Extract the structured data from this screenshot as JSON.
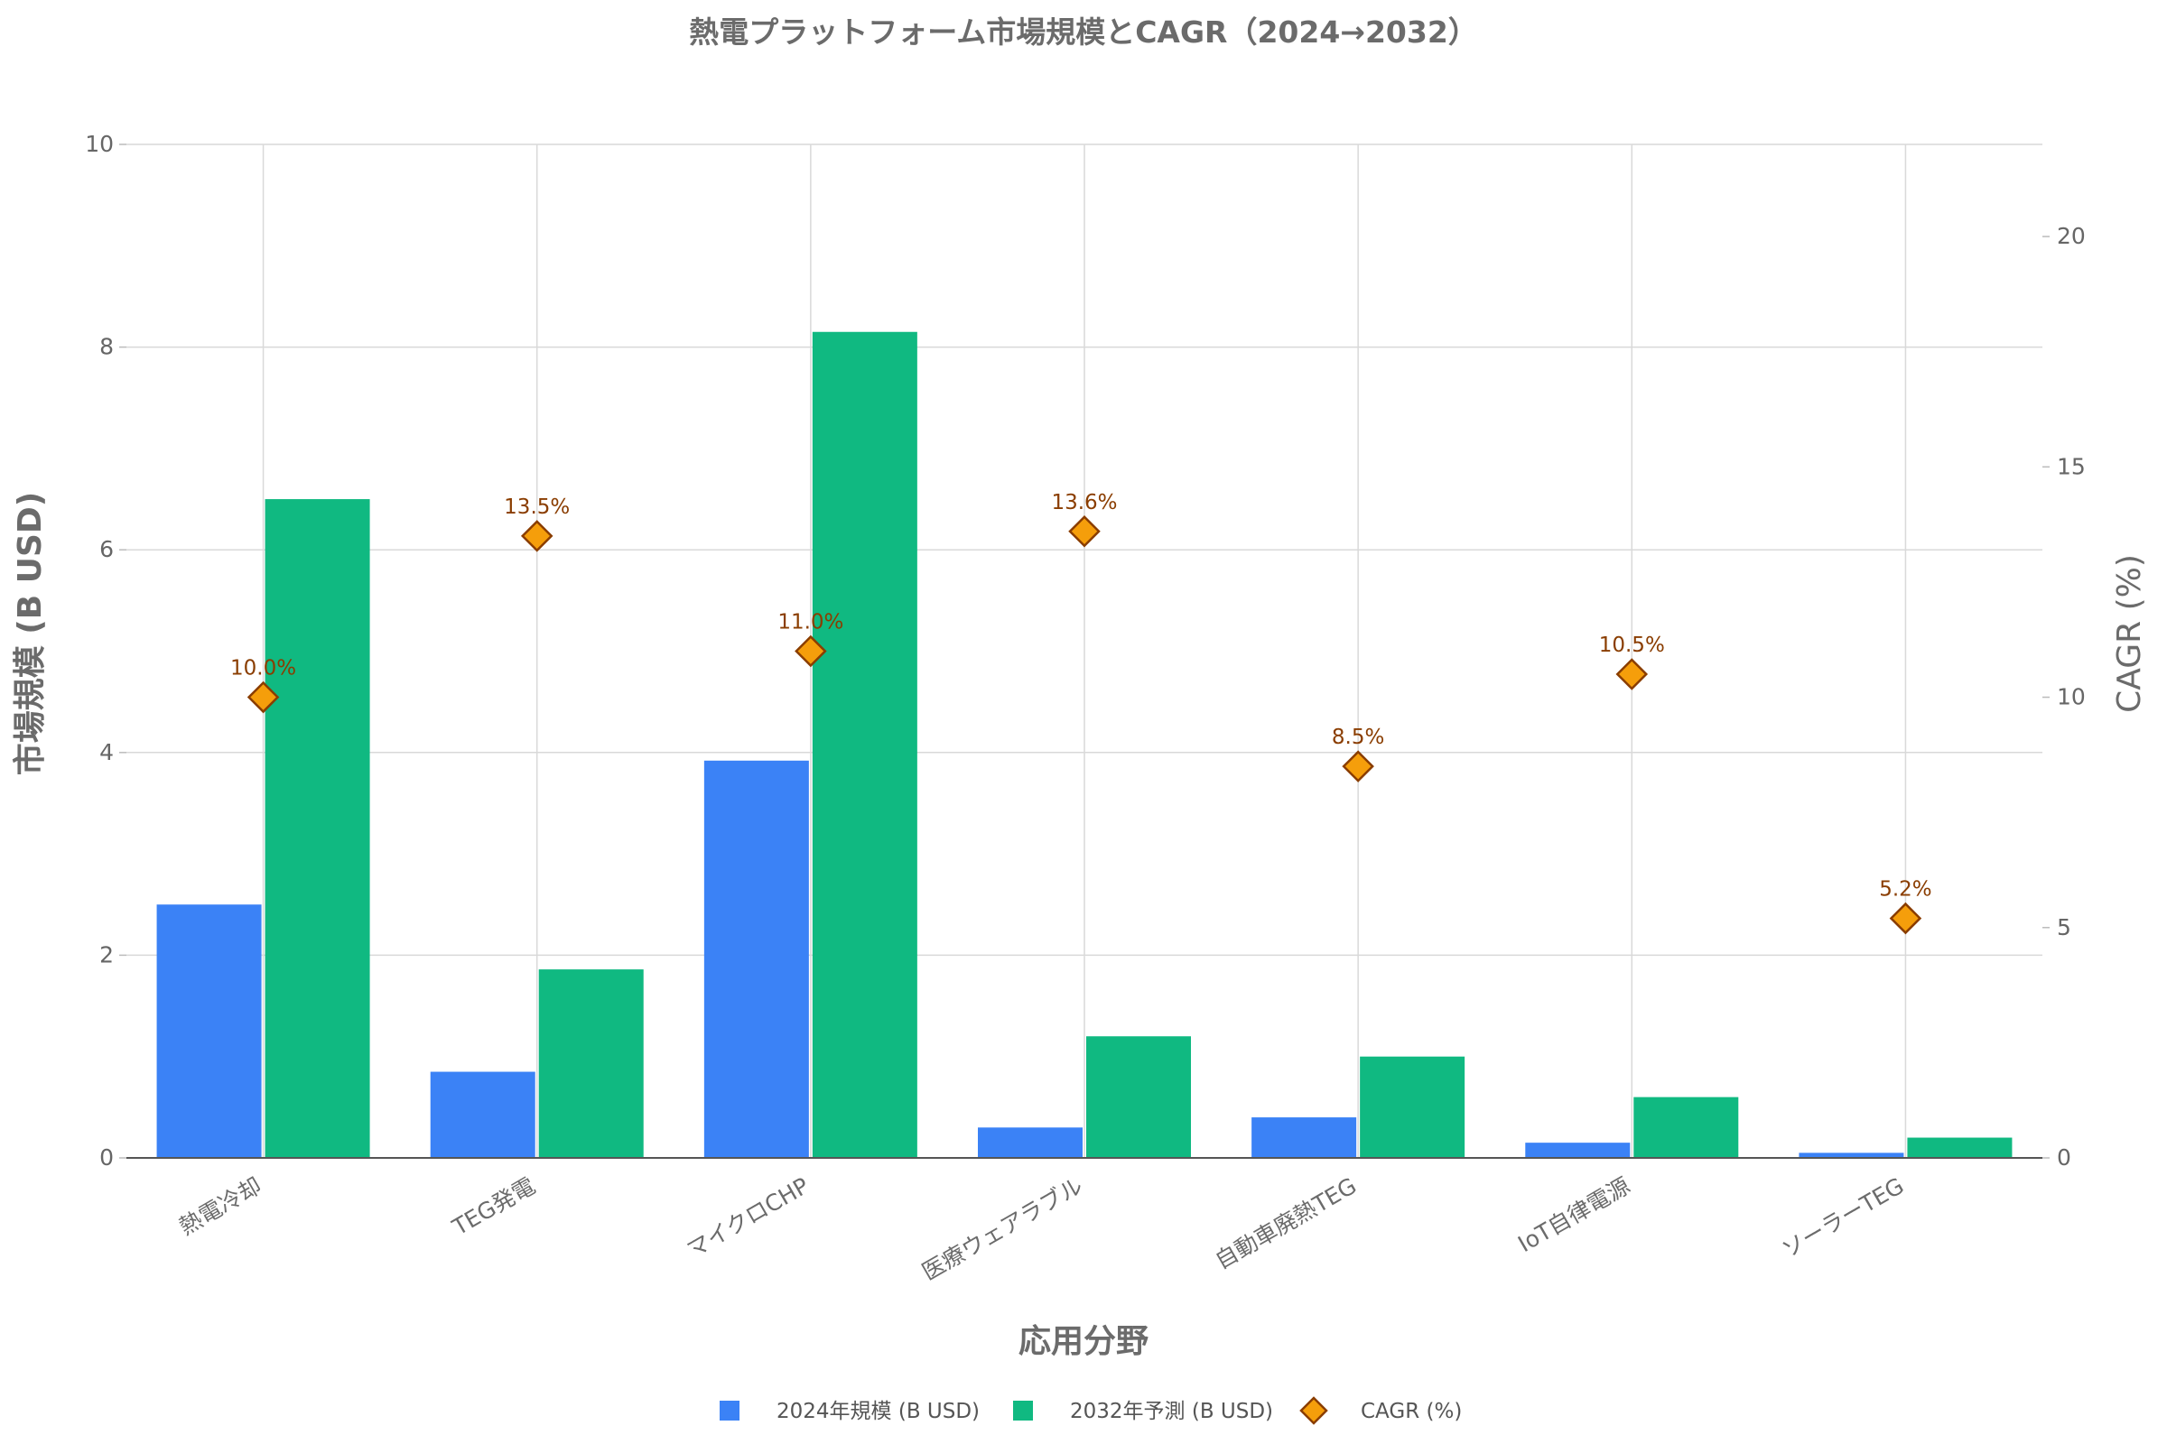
{
  "chart_data": {
    "type": "bar",
    "title": "熱電プラットフォーム市場規模とCAGR（2024→2032）",
    "xlabel": "応用分野",
    "ylabel": "市場規模 (B USD)",
    "y2label": "CAGR (%)",
    "ylim": [
      0,
      10
    ],
    "y2lim": [
      0,
      22
    ],
    "yticks": [
      0,
      2,
      4,
      6,
      8,
      10
    ],
    "y2ticks": [
      0,
      5,
      10,
      15,
      20
    ],
    "grid": true,
    "legend_position": "bottom-center",
    "categories": [
      "熱電冷却",
      "TEG発電",
      "マイクロCHP",
      "医療ウェアラブル",
      "自動車廃熱TEG",
      "IoT自律電源",
      "ソーラーTEG"
    ],
    "series": [
      {
        "name": "2024年規模 (B USD)",
        "type": "bar",
        "axis": "left",
        "color": "#3b82f6",
        "values": [
          2.5,
          0.85,
          3.92,
          0.3,
          0.4,
          0.15,
          0.05
        ]
      },
      {
        "name": "2032年予測 (B USD)",
        "type": "bar",
        "axis": "left",
        "color": "#10b981",
        "values": [
          6.5,
          1.86,
          8.15,
          1.2,
          1.0,
          0.6,
          0.2
        ]
      },
      {
        "name": "CAGR (%)",
        "type": "scatter",
        "marker": "diamond",
        "axis": "right",
        "color": "#f59e0b",
        "edge_color": "#8a3d00",
        "values": [
          10.0,
          13.5,
          11.0,
          13.6,
          8.5,
          10.5,
          5.2
        ],
        "labels": [
          "10.0%",
          "13.5%",
          "11.0%",
          "13.6%",
          "8.5%",
          "10.5%",
          "5.2%"
        ]
      }
    ]
  }
}
